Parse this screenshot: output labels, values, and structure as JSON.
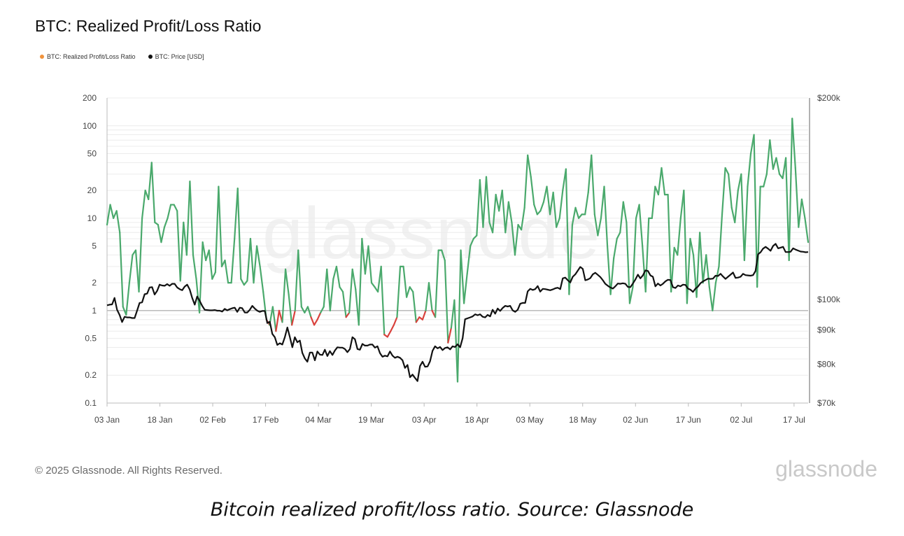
{
  "header": {
    "title": "BTC: Realized Profit/Loss Ratio"
  },
  "legend": [
    {
      "label": "BTC: Realized Profit/Loss Ratio",
      "color": "#f0923b"
    },
    {
      "label": "BTC: Price [USD]",
      "color": "#111111"
    }
  ],
  "watermark": "glassnode",
  "footer": {
    "copyright": "© 2025 Glassnode. All Rights Reserved.",
    "brand": "glassnode",
    "caption": "Bitcoin realized profit/loss ratio. Source: Glassnode"
  },
  "chart_data": {
    "type": "line",
    "title": "BTC: Realized Profit/Loss Ratio",
    "x_start": "2025-01-03",
    "x_end": "2025-07-21",
    "x_tick_labels": [
      "03 Jan",
      "18 Jan",
      "02 Feb",
      "17 Feb",
      "04 Mar",
      "19 Mar",
      "03 Apr",
      "18 Apr",
      "03 May",
      "18 May",
      "02 Jun",
      "17 Jun",
      "02 Jul",
      "17 Jul"
    ],
    "y_left": {
      "scale": "log",
      "ticks": [
        200,
        100,
        50,
        20,
        10,
        5,
        2,
        1,
        0.5,
        0.2,
        0.1
      ],
      "tick_labels": [
        "200",
        "100",
        "50",
        "20",
        "10",
        "5",
        "2",
        "1",
        "0.5",
        "0.2",
        "0.1"
      ],
      "range": [
        0.1,
        200
      ]
    },
    "y_right": {
      "scale": "log",
      "ticks": [
        200000,
        100000,
        90000,
        80000,
        70000
      ],
      "tick_labels": [
        "$200k",
        "$100k",
        "$90k",
        "$80k",
        "$70k"
      ],
      "range": [
        70000,
        200000
      ]
    },
    "reference_line": 1,
    "colors": {
      "above_one": "#4aa96c",
      "below_one": "#d9413c",
      "price": "#111111",
      "grid": "#ececec"
    },
    "series": [
      {
        "name": "BTC: Realized Profit/Loss Ratio",
        "axis": "left",
        "values": [
          8.5,
          14,
          10,
          12,
          7,
          1.1,
          0.9,
          2,
          4,
          4.5,
          1.6,
          10,
          20,
          16,
          40,
          9,
          8.5,
          5.5,
          8,
          10,
          14,
          14,
          12,
          2.1,
          9,
          4,
          25,
          4,
          2.2,
          0.95,
          5.5,
          3.5,
          4.5,
          2.2,
          2.6,
          22,
          3,
          3.5,
          2,
          2,
          6,
          21,
          2.2,
          1.9,
          2.1,
          6,
          2,
          5,
          3,
          1.6,
          0.8,
          0.7,
          1.1,
          0.6,
          1,
          0.75,
          2.8,
          1.5,
          0.7,
          1,
          4.5,
          1.1,
          0.95,
          1.1,
          0.85,
          0.7,
          0.8,
          0.95,
          1.1,
          2.8,
          1,
          2.2,
          3,
          1.8,
          1.6,
          0.85,
          0.95,
          2.8,
          1.7,
          0.7,
          6,
          2.5,
          5,
          2,
          1.8,
          1.6,
          3,
          0.55,
          0.52,
          0.6,
          0.7,
          0.85,
          3,
          3,
          1.4,
          1.8,
          1.6,
          0.75,
          0.85,
          0.8,
          1,
          2,
          1,
          0.85,
          4.5,
          4.5,
          3.5,
          0.45,
          0.65,
          1.3,
          0.17,
          4.5,
          1.2,
          2.5,
          5,
          6,
          6.5,
          26,
          8,
          28,
          9,
          7,
          18,
          12,
          20,
          7,
          15,
          9,
          4,
          8.5,
          7.5,
          13,
          48,
          28,
          14,
          11,
          12,
          15,
          22,
          11,
          19,
          8,
          10,
          20,
          34,
          1.5,
          8.5,
          13,
          10,
          11,
          11,
          19,
          48,
          11,
          6.5,
          10,
          22,
          5,
          1.5,
          3.7,
          6,
          7,
          15,
          9,
          1.2,
          1.8,
          10,
          14,
          5,
          1.6,
          10,
          10,
          22,
          18,
          35,
          18,
          18,
          1.6,
          4.8,
          4,
          10,
          20,
          1.2,
          6,
          4,
          1.4,
          7,
          2,
          4,
          1.8,
          1,
          2,
          3,
          11,
          35,
          30,
          13,
          9,
          20,
          30,
          3.5,
          22,
          50,
          80,
          1.8,
          22,
          22,
          30,
          70,
          34,
          45,
          30,
          27,
          45,
          3.5,
          120,
          35,
          8,
          16,
          10,
          5.5
        ]
      },
      {
        "name": "BTC: Price [USD]",
        "axis": "right",
        "values": [
          98000,
          98200,
          98300,
          100500,
          96500,
          94800,
          92500,
          94200,
          94000,
          94000,
          93800,
          93800,
          96200,
          98800,
          99000,
          101800,
          102000,
          104200,
          104300,
          101700,
          103000,
          105200,
          104900,
          104800,
          105400,
          104800,
          105500,
          105500,
          104200,
          103600,
          103200,
          104500,
          105200,
          103500,
          100500,
          98200,
          101000,
          99500,
          97800,
          96500,
          96400,
          96300,
          96300,
          96400,
          96200,
          96200,
          95900,
          96800,
          96300,
          96700,
          97000,
          97200,
          95800,
          97200,
          97000,
          95600,
          95600,
          96500,
          97800,
          96900,
          96200,
          95800,
          96100,
          96100,
          92200,
          92600,
          88800,
          87800,
          85500,
          86000,
          85600,
          87800,
          90800,
          87900,
          84800,
          87800,
          86300,
          86800,
          83200,
          81600,
          80700,
          83300,
          83300,
          81100,
          83600,
          82700,
          82600,
          84100,
          82300,
          83700,
          82600,
          83900,
          84800,
          84700,
          84700,
          84300,
          83400,
          84300,
          87800,
          87200,
          84300,
          84100,
          85800,
          85300,
          85300,
          85600,
          85600,
          84700,
          85100,
          83100,
          82100,
          82400,
          82200,
          83600,
          82400,
          81800,
          82100,
          81800,
          81100,
          79000,
          79800,
          76500,
          77200,
          76300,
          75500,
          79500,
          80700,
          79300,
          79400,
          80800,
          83800,
          85100,
          84500,
          84900,
          84000,
          84600,
          84800,
          84200,
          85100,
          84900,
          85700,
          84800,
          87500,
          93400,
          93700,
          94000,
          94300,
          95000,
          94700,
          95000,
          94200,
          94000,
          94800,
          94300,
          96500,
          95200,
          96900,
          96100,
          97100,
          97800,
          97600,
          97800,
          96300,
          95800,
          96500,
          98500,
          98800,
          98800,
          102800,
          103700,
          103300,
          103600,
          104700,
          102700,
          103700,
          103600,
          103400,
          103200,
          103500,
          103900,
          104100,
          103600,
          107500,
          107800,
          106800,
          106000,
          108100,
          109000,
          110400,
          111800,
          111100,
          106800,
          107100,
          107600,
          109000,
          109600,
          108800,
          108000,
          106800,
          105500,
          104800,
          104200,
          103800,
          104600,
          105600,
          105500,
          105700,
          105500,
          104400,
          104300,
          105600,
          107100,
          108900,
          107500,
          108600,
          110500,
          110300,
          108600,
          108100,
          104600,
          105600,
          104900,
          105500,
          106400,
          107000,
          106900,
          104300,
          104000,
          104900,
          104600,
          105200,
          105100,
          103800,
          103400,
          102600,
          103800,
          104500,
          105700,
          106400,
          106900,
          107400,
          107300,
          107400,
          108500,
          108400,
          109200,
          108200,
          107300,
          108100,
          108900,
          109700,
          107700,
          107800,
          108100,
          109200,
          108700,
          108600,
          108500,
          108700,
          110300,
          116800,
          117600,
          119100,
          119800,
          119100,
          118200,
          120200,
          121100,
          119200,
          119500,
          119800,
          117700,
          117700,
          117800,
          119200,
          118700,
          118300,
          117900,
          117800,
          117600,
          117700
        ]
      }
    ]
  }
}
